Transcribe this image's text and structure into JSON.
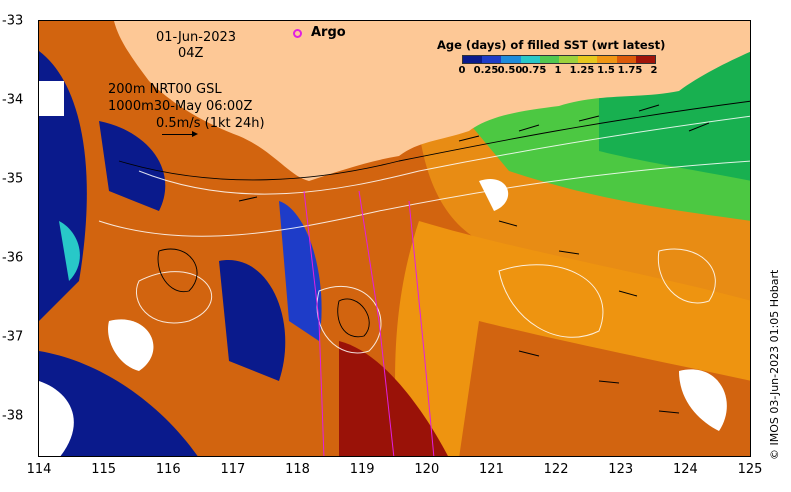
{
  "map": {
    "date": "01-Jun-2023",
    "time": "04Z",
    "contour_line1": "200m  NRT00 GSL",
    "contour_line2": "1000m30-May 06:00Z",
    "scale_label": "0.5m/s (1kt 24h)",
    "legend_argo": "Argo",
    "credit": "© IMOS 03-Jun-2023 01:05 Hobart",
    "x_ticks": [
      "114",
      "115",
      "116",
      "117",
      "118",
      "119",
      "120",
      "121",
      "122",
      "123",
      "124",
      "125"
    ],
    "y_ticks": [
      "-33",
      "-34",
      "-35",
      "-36",
      "-37",
      "-38"
    ],
    "land_color": "#fdc896",
    "argo_color": "#e020e0"
  },
  "colorbar": {
    "title": "Age (days) of filled SST (wrt latest)",
    "ticks": [
      "0",
      "0.25",
      "0.50",
      "0.75",
      "1",
      "1.25",
      "1.5",
      "1.75",
      "2"
    ],
    "colors": [
      "#0a1a8c",
      "#1e3cc8",
      "#1e8cdc",
      "#28c8c8",
      "#50c850",
      "#9cd23c",
      "#e6c81e",
      "#f09614",
      "#dc5a0a",
      "#a0140a"
    ]
  }
}
